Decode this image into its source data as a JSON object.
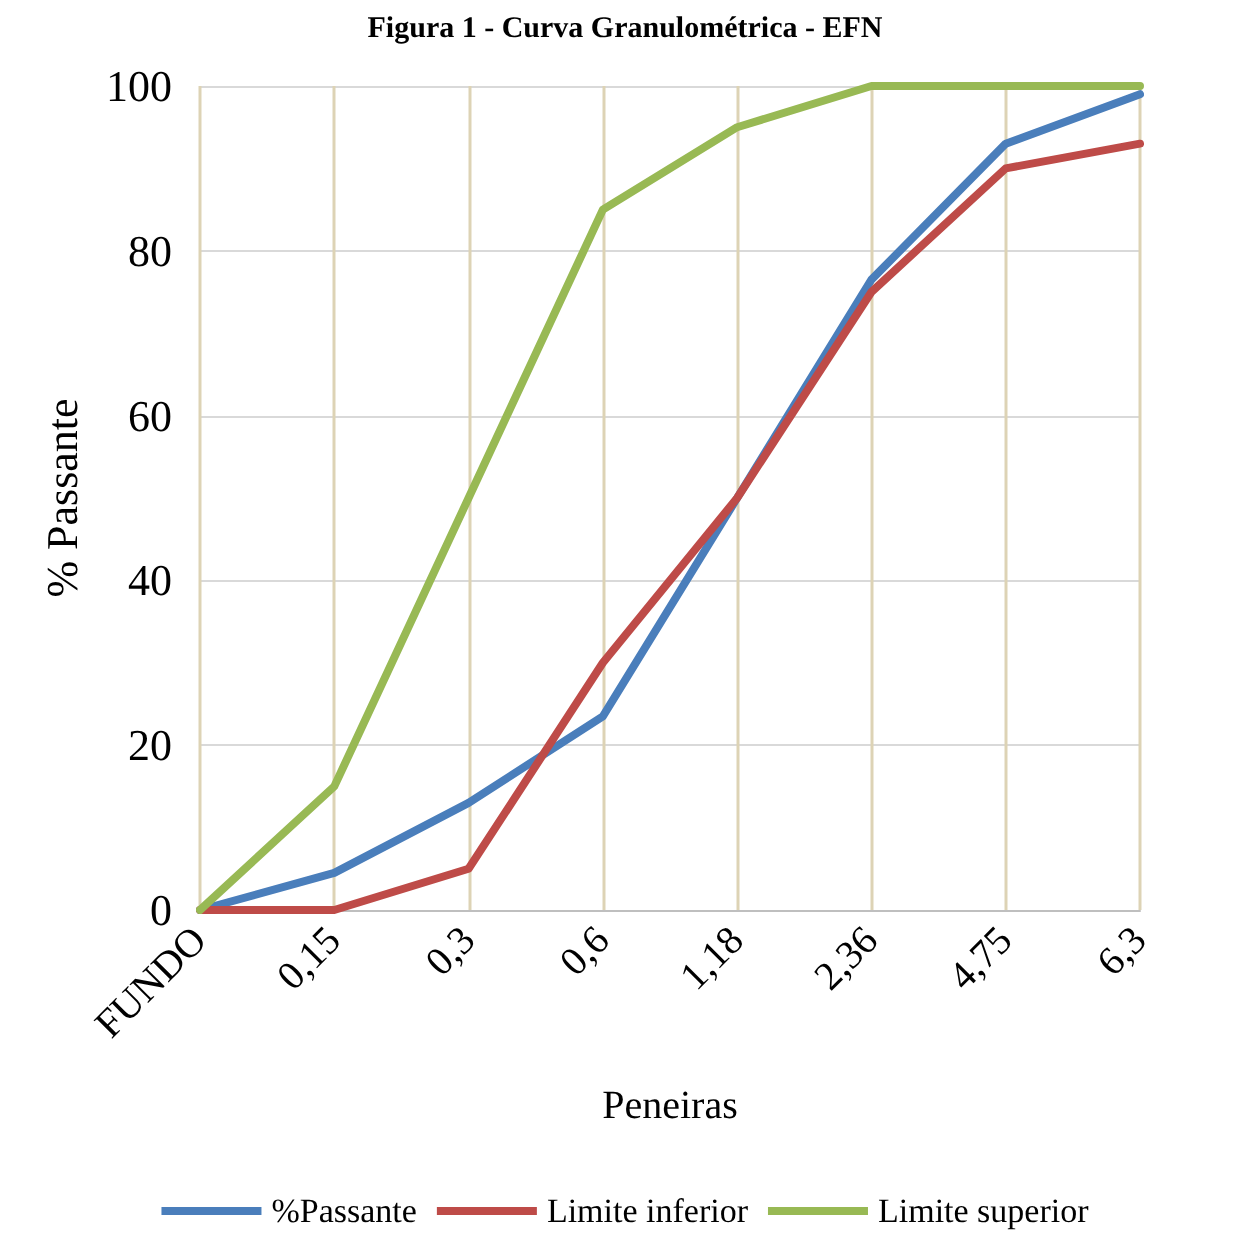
{
  "chart_data": {
    "type": "line",
    "title": "Figura 1 - Curva Granulométrica - EFN",
    "xlabel": "Peneiras",
    "ylabel": "% Passante",
    "categories": [
      "FUNDO",
      "0,15",
      "0,3",
      "0,6",
      "1,18",
      "2,36",
      "4,75",
      "6,3"
    ],
    "series": [
      {
        "name": "%Passante",
        "color": "#4a7ebb",
        "values": [
          0,
          4.5,
          13,
          23.5,
          50,
          76.5,
          93,
          99
        ]
      },
      {
        "name": "Limite inferior",
        "color": "#be4b48",
        "values": [
          0,
          0,
          5,
          30,
          50,
          75,
          90,
          93
        ]
      },
      {
        "name": "Limite superior",
        "color": "#98b954",
        "values": [
          0,
          15,
          50,
          85,
          95,
          100,
          100,
          100
        ]
      }
    ],
    "ylim": [
      0,
      100
    ],
    "yticks": [
      0,
      20,
      40,
      60,
      80,
      100
    ],
    "grid": true,
    "legend": "bottom",
    "marker": "none",
    "line_style": "solid"
  }
}
